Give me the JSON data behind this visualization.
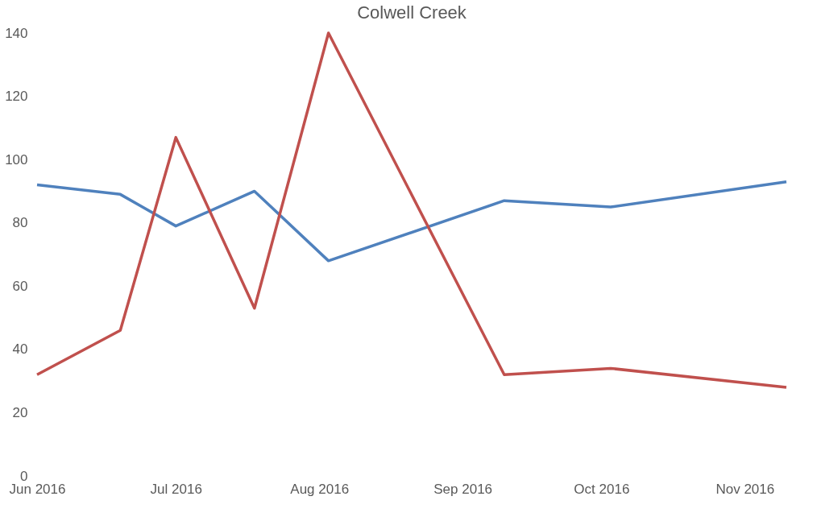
{
  "chart_data": {
    "type": "line",
    "title": "Colwell Creek",
    "x": [
      "2016-06-01",
      "2016-06-19",
      "2016-07-01",
      "2016-07-18",
      "2016-08-03",
      "2016-09-10",
      "2016-10-03",
      "2016-11-10"
    ],
    "series": [
      {
        "color": "#4f81bd",
        "values": [
          92,
          89,
          79,
          90,
          68,
          87,
          85,
          93
        ]
      },
      {
        "color": "#c0504d",
        "values": [
          32,
          46,
          107,
          53,
          140,
          32,
          34,
          28
        ]
      }
    ],
    "xlim": [
      "2016-06-01",
      "2016-11-10"
    ],
    "xticks": [
      {
        "value": "2016-06-01",
        "label": "Jun 2016"
      },
      {
        "value": "2016-07-01",
        "label": "Jul 2016"
      },
      {
        "value": "2016-08-01",
        "label": "Aug 2016"
      },
      {
        "value": "2016-09-01",
        "label": "Sep 2016"
      },
      {
        "value": "2016-10-01",
        "label": "Oct 2016"
      },
      {
        "value": "2016-11-01",
        "label": "Nov 2016"
      }
    ],
    "ylim": [
      0,
      140
    ],
    "yticks": [
      0,
      20,
      40,
      60,
      80,
      100,
      120,
      140
    ],
    "grid": false,
    "legend": false,
    "marker": "none",
    "line_style": "solid"
  }
}
